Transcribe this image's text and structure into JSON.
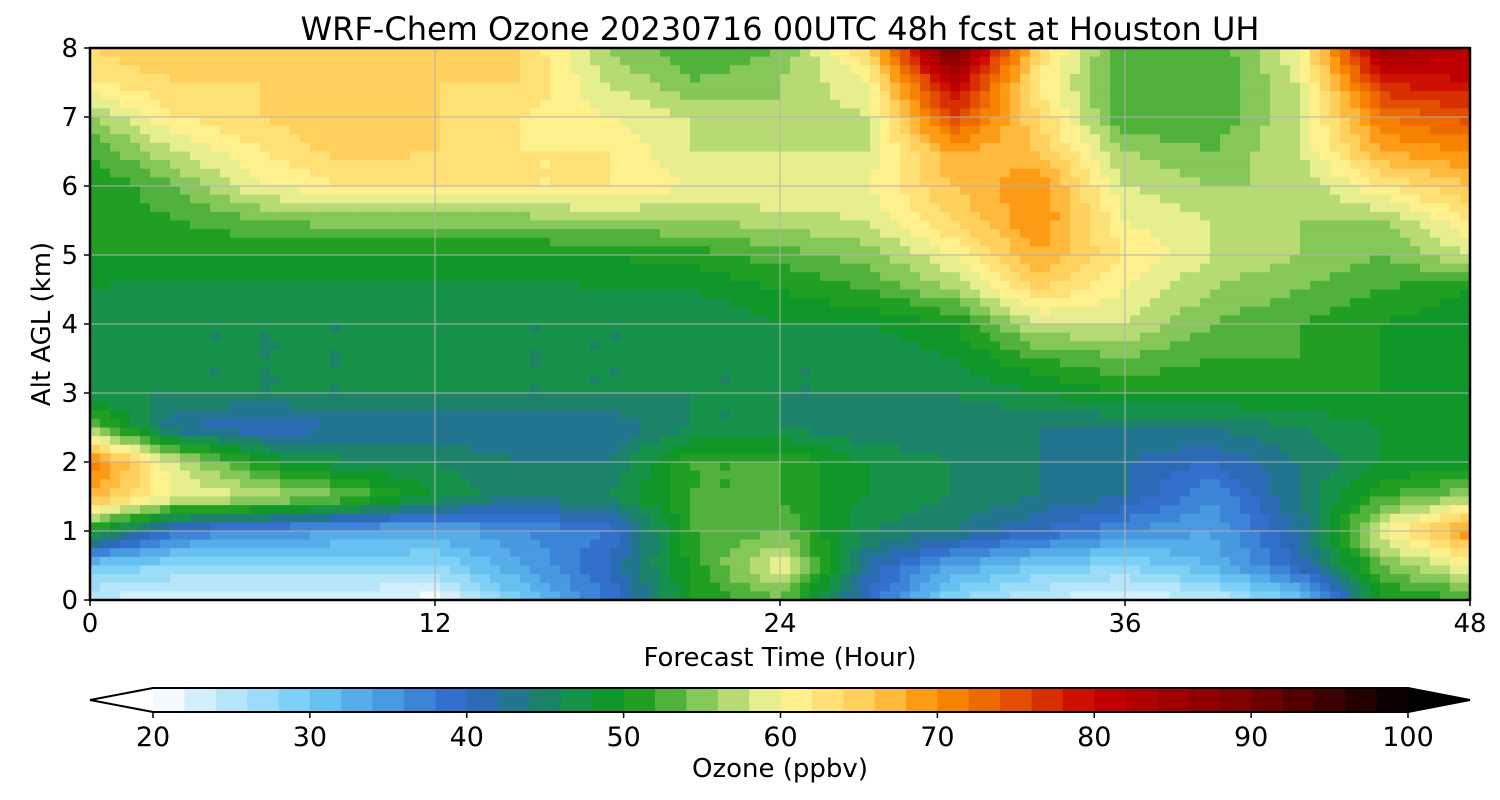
{
  "chart_data": {
    "type": "heatmap",
    "title": "WRF-Chem Ozone  20230716 00UTC 48h fcst at Houston UH",
    "xlabel": "Forecast Time (Hour)",
    "ylabel": "Alt AGL (km)",
    "xlim": [
      0,
      48
    ],
    "ylim": [
      0,
      8
    ],
    "xticks": [
      0,
      12,
      24,
      36,
      48
    ],
    "yticks": [
      0,
      1,
      2,
      3,
      4,
      5,
      6,
      7,
      8
    ],
    "grid": true,
    "x": [
      0,
      3,
      6,
      9,
      12,
      15,
      18,
      21,
      24,
      27,
      30,
      33,
      36,
      39,
      42,
      45,
      48
    ],
    "y": [
      0,
      0.5,
      1,
      1.5,
      2,
      2.5,
      3,
      3.5,
      4,
      4.5,
      5,
      5.5,
      6,
      6.5,
      7,
      7.5,
      8
    ],
    "z": [
      [
        24,
        22,
        22,
        22,
        21,
        30,
        38,
        50,
        54,
        40,
        28,
        24,
        22,
        24,
        30,
        50,
        52
      ],
      [
        30,
        28,
        28,
        28,
        28,
        34,
        40,
        51,
        60,
        42,
        34,
        30,
        28,
        32,
        40,
        54,
        60
      ],
      [
        50,
        38,
        36,
        34,
        33,
        36,
        38,
        52,
        54,
        46,
        44,
        40,
        36,
        34,
        42,
        60,
        70
      ],
      [
        68,
        60,
        58,
        54,
        48,
        44,
        46,
        52,
        52,
        48,
        46,
        44,
        42,
        36,
        44,
        52,
        56
      ],
      [
        72,
        58,
        50,
        46,
        46,
        44,
        44,
        52,
        52,
        48,
        46,
        44,
        42,
        40,
        44,
        48,
        48
      ],
      [
        55,
        42,
        40,
        42,
        42,
        42,
        42,
        46,
        46,
        44,
        44,
        44,
        44,
        44,
        46,
        48,
        48
      ],
      [
        46,
        46,
        46,
        46,
        46,
        46,
        46,
        46,
        46,
        46,
        46,
        48,
        50,
        50,
        50,
        50,
        48
      ],
      [
        48,
        46,
        46,
        46,
        46,
        46,
        46,
        46,
        46,
        46,
        48,
        52,
        54,
        52,
        52,
        50,
        48
      ],
      [
        48,
        46,
        46,
        46,
        46,
        46,
        46,
        46,
        48,
        48,
        50,
        58,
        58,
        54,
        52,
        50,
        48
      ],
      [
        48,
        47,
        47,
        47,
        47,
        47,
        48,
        48,
        50,
        52,
        56,
        64,
        60,
        56,
        54,
        52,
        50
      ],
      [
        50,
        50,
        50,
        50,
        50,
        50,
        50,
        51,
        53,
        55,
        60,
        68,
        62,
        58,
        56,
        54,
        58
      ],
      [
        50,
        52,
        54,
        55,
        55,
        55,
        56,
        56,
        57,
        58,
        64,
        70,
        60,
        58,
        56,
        56,
        62
      ],
      [
        50,
        54,
        60,
        62,
        62,
        62,
        62,
        60,
        60,
        60,
        66,
        70,
        58,
        56,
        56,
        62,
        66
      ],
      [
        52,
        58,
        62,
        65,
        64,
        62,
        62,
        58,
        58,
        58,
        68,
        66,
        56,
        54,
        58,
        68,
        70
      ],
      [
        56,
        62,
        64,
        66,
        64,
        62,
        60,
        58,
        56,
        58,
        76,
        64,
        52,
        52,
        58,
        72,
        75
      ],
      [
        62,
        64,
        64,
        64,
        64,
        64,
        58,
        54,
        56,
        60,
        82,
        62,
        52,
        52,
        58,
        78,
        80
      ],
      [
        64,
        66,
        64,
        64,
        66,
        64,
        56,
        52,
        54,
        64,
        92,
        64,
        52,
        52,
        60,
        86,
        82
      ]
    ],
    "colorbar": {
      "label": "Ozone  (ppbv)",
      "min": 20,
      "max": 100,
      "step": 2,
      "extend": "both",
      "ticks": [
        20,
        30,
        40,
        50,
        60,
        70,
        80,
        90,
        100
      ]
    },
    "colors": {
      "stops": [
        [
          20,
          "#ffffff"
        ],
        [
          30,
          "#6ecbf5"
        ],
        [
          36,
          "#3f8fdc"
        ],
        [
          40,
          "#2f64c8"
        ],
        [
          44,
          "#1e7a7a"
        ],
        [
          48,
          "#149a3a"
        ],
        [
          50,
          "#0a9618"
        ],
        [
          52,
          "#35a82d"
        ],
        [
          56,
          "#9fd166"
        ],
        [
          60,
          "#fff89a"
        ],
        [
          66,
          "#ffc850"
        ],
        [
          70,
          "#fc8c00"
        ],
        [
          74,
          "#e85e00"
        ],
        [
          80,
          "#c80000"
        ],
        [
          90,
          "#780000"
        ],
        [
          100,
          "#000000"
        ]
      ],
      "grid": "#b0b0b0"
    }
  }
}
